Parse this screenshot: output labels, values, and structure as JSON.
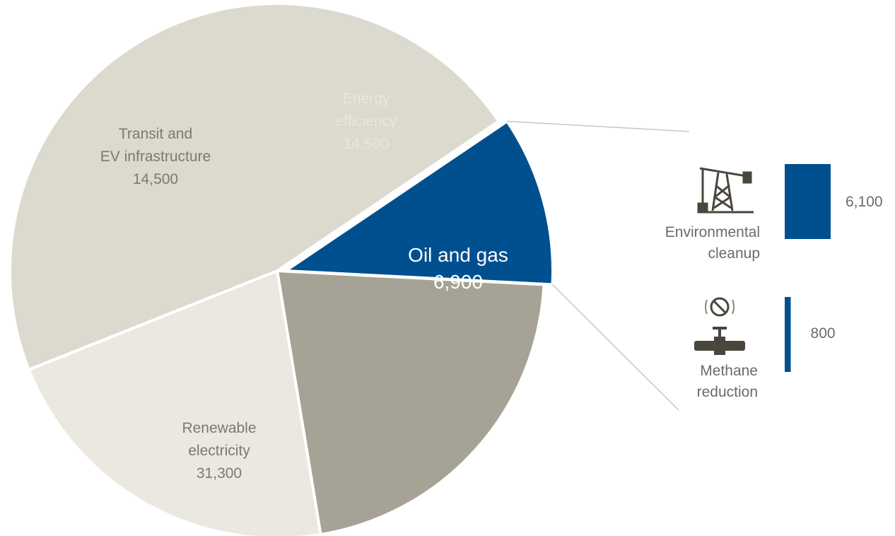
{
  "chart_data": {
    "type": "pie",
    "title": "",
    "slices": [
      {
        "label_lines": [
          "Oil and gas"
        ],
        "value": 6900,
        "value_label": "6,900",
        "color": "#00508f",
        "text_color": "#ffffff",
        "exploded": true
      },
      {
        "label_lines": [
          "Energy",
          "efficiency"
        ],
        "value": 14500,
        "value_label": "14,500",
        "color": "#a6a396",
        "text_color": "#e9e6dd"
      },
      {
        "label_lines": [
          "Transit and",
          "EV infrastructure"
        ],
        "value": 14500,
        "value_label": "14,500",
        "color": "#ebe8e0",
        "text_color": "#7a7a72"
      },
      {
        "label_lines": [
          "Renewable",
          "electricity"
        ],
        "value": 31300,
        "value_label": "31,300",
        "color": "#dcd9cf",
        "text_color": "#7a7a72"
      }
    ],
    "breakdown": {
      "parent": "Oil and gas",
      "items": [
        {
          "label_lines": [
            "Environmental",
            "cleanup"
          ],
          "value": 6100,
          "value_label": "6,100",
          "icon": "oil-derrick-icon"
        },
        {
          "label_lines": [
            "Methane",
            "reduction"
          ],
          "value": 800,
          "value_label": "800",
          "icon": "methane-valve-icon"
        }
      ],
      "bar_color": "#00508f"
    }
  }
}
